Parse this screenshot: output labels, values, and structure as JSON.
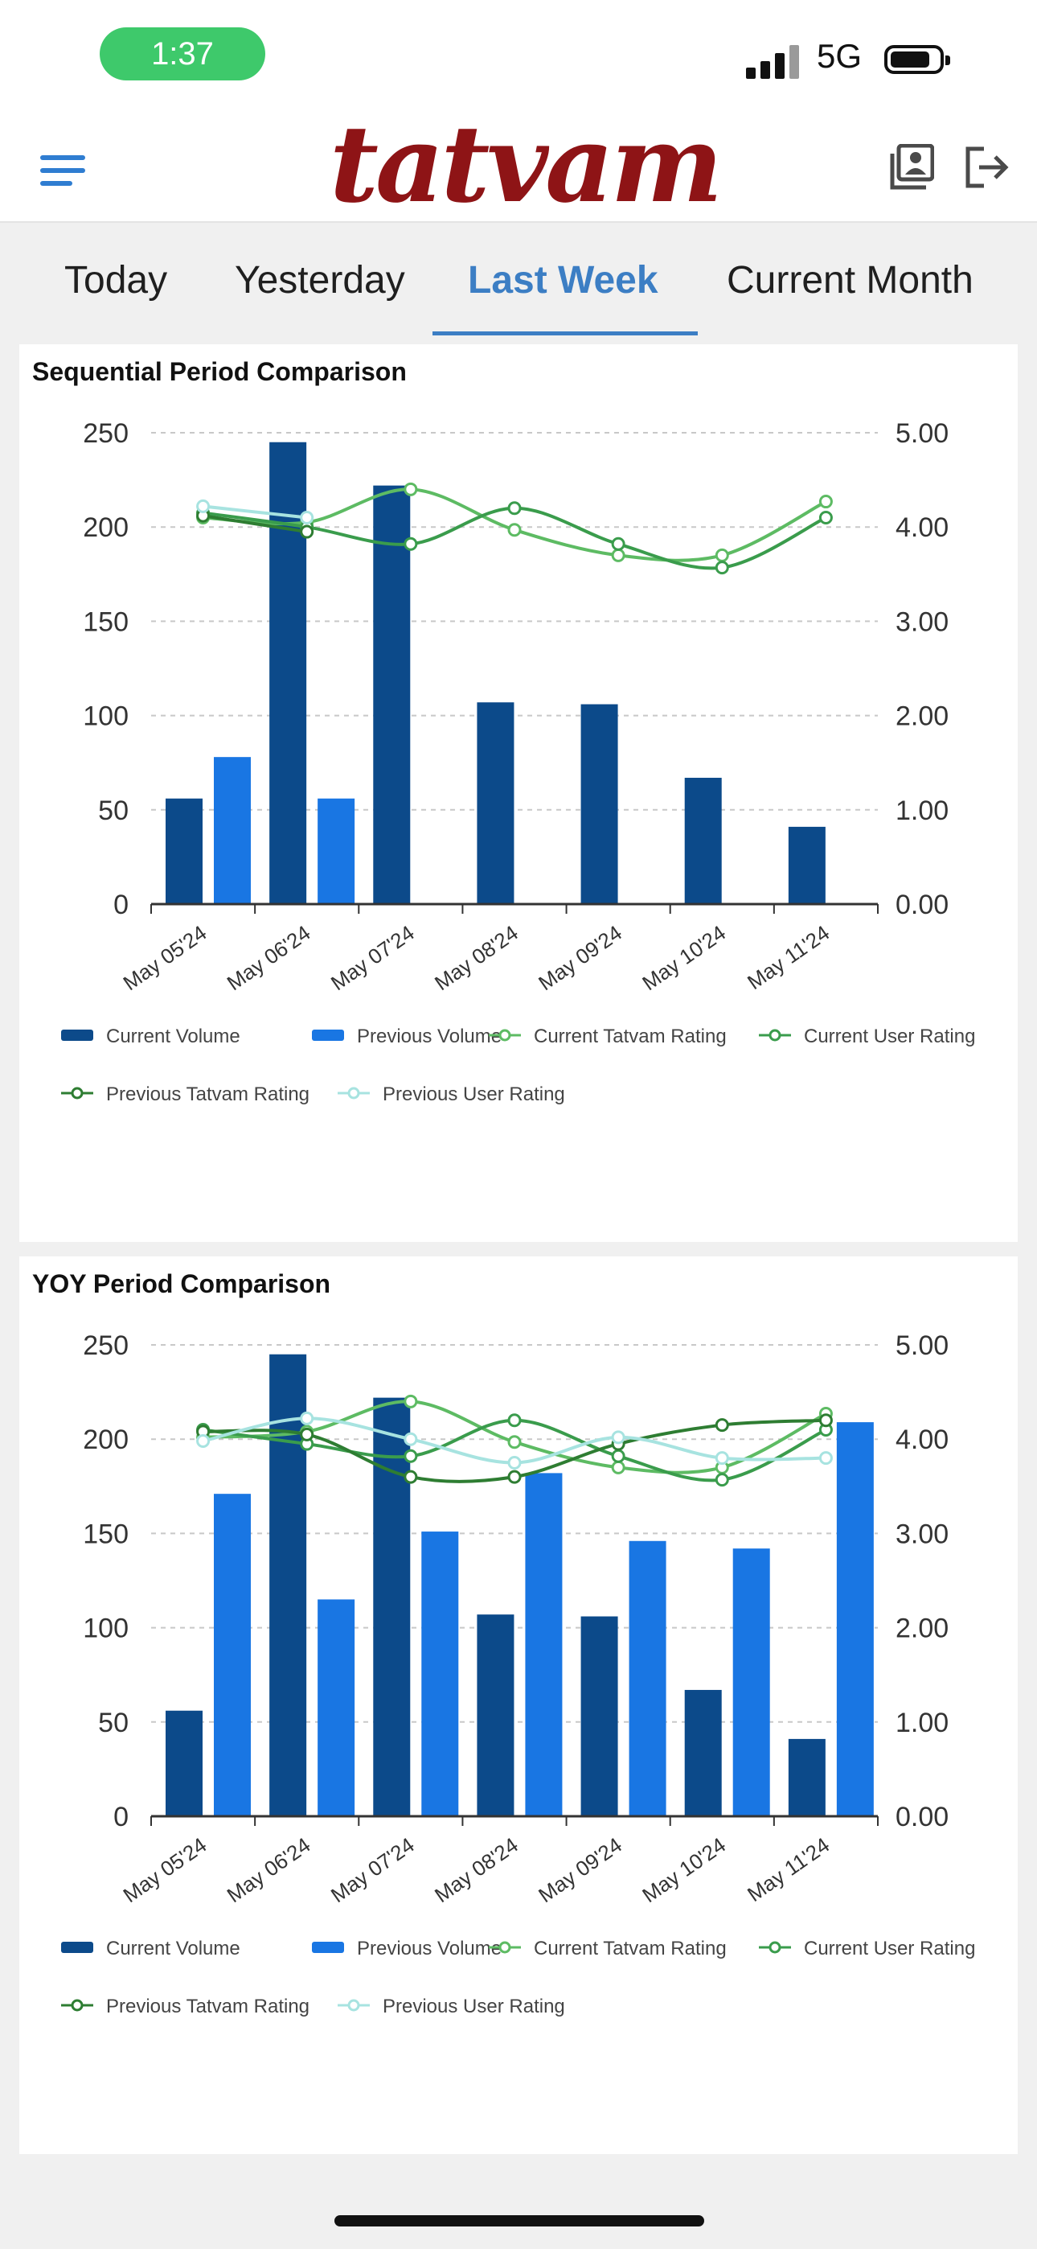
{
  "status_bar": {
    "time": "1:37",
    "network": "5G"
  },
  "header": {
    "logo_text": "tatvam"
  },
  "tabs": [
    {
      "label": "Today",
      "active": false
    },
    {
      "label": "Yesterday",
      "active": false
    },
    {
      "label": "Last Week",
      "active": true
    },
    {
      "label": "Current Month",
      "active": false
    }
  ],
  "colors": {
    "current_volume": "#0c4a8a",
    "previous_volume": "#1976e3",
    "current_tatvam_rating": "#5dbb63",
    "current_user_rating": "#3a9c4c",
    "previous_tatvam_rating": "#2e7d32",
    "previous_user_rating": "#a7e3e0",
    "accent": "#3c7ec4"
  },
  "chart_data": [
    {
      "type": "bar",
      "title": "Sequential Period Comparison",
      "categories": [
        "May 05'24",
        "May 06'24",
        "May 07'24",
        "May 08'24",
        "May 09'24",
        "May 10'24",
        "May 11'24"
      ],
      "y_left": {
        "range": [
          0,
          250
        ],
        "ticks": [
          "0",
          "50",
          "100",
          "150",
          "200",
          "250"
        ]
      },
      "y_right": {
        "range": [
          0,
          5
        ],
        "ticks": [
          "0.00",
          "1.00",
          "2.00",
          "3.00",
          "4.00",
          "5.00"
        ]
      },
      "grid": true,
      "legend_position": "bottom",
      "series": [
        {
          "name": "Current Volume",
          "kind": "bar",
          "axis": "left",
          "values": [
            56,
            245,
            222,
            107,
            106,
            67,
            41
          ]
        },
        {
          "name": "Previous Volume",
          "kind": "bar",
          "axis": "left",
          "values": [
            78,
            56,
            null,
            null,
            null,
            null,
            null
          ]
        },
        {
          "name": "Current Tatvam Rating",
          "kind": "line",
          "axis": "right",
          "values": [
            4.1,
            4.05,
            4.4,
            3.97,
            3.7,
            3.7,
            4.27
          ]
        },
        {
          "name": "Current User Rating",
          "kind": "line",
          "axis": "right",
          "values": [
            4.15,
            4.0,
            3.82,
            4.2,
            3.82,
            3.57,
            4.1
          ]
        },
        {
          "name": "Previous Tatvam Rating",
          "kind": "line",
          "axis": "right",
          "values": [
            4.12,
            3.95,
            null,
            null,
            null,
            null,
            null
          ]
        },
        {
          "name": "Previous User Rating",
          "kind": "line",
          "axis": "right",
          "values": [
            4.22,
            4.1,
            null,
            null,
            null,
            null,
            null
          ]
        }
      ]
    },
    {
      "type": "bar",
      "title": "YOY Period Comparison",
      "categories": [
        "May 05'24",
        "May 06'24",
        "May 07'24",
        "May 08'24",
        "May 09'24",
        "May 10'24",
        "May 11'24"
      ],
      "y_left": {
        "range": [
          0,
          250
        ],
        "ticks": [
          "0",
          "50",
          "100",
          "150",
          "200",
          "250"
        ]
      },
      "y_right": {
        "range": [
          0,
          5
        ],
        "ticks": [
          "0.00",
          "1.00",
          "2.00",
          "3.00",
          "4.00",
          "5.00"
        ]
      },
      "grid": true,
      "legend_position": "bottom",
      "series": [
        {
          "name": "Current Volume",
          "kind": "bar",
          "axis": "left",
          "values": [
            56,
            245,
            222,
            107,
            106,
            67,
            41
          ]
        },
        {
          "name": "Previous Volume",
          "kind": "bar",
          "axis": "left",
          "values": [
            171,
            115,
            151,
            182,
            146,
            142,
            209
          ]
        },
        {
          "name": "Current Tatvam Rating",
          "kind": "line",
          "axis": "right",
          "values": [
            4.02,
            4.08,
            4.4,
            3.97,
            3.7,
            3.7,
            4.27
          ]
        },
        {
          "name": "Current User Rating",
          "kind": "line",
          "axis": "right",
          "values": [
            4.1,
            3.95,
            3.82,
            4.2,
            3.82,
            3.57,
            4.1
          ]
        },
        {
          "name": "Previous Tatvam Rating",
          "kind": "line",
          "axis": "right",
          "values": [
            4.08,
            4.05,
            3.6,
            3.6,
            3.95,
            4.15,
            4.2
          ]
        },
        {
          "name": "Previous User Rating",
          "kind": "line",
          "axis": "right",
          "values": [
            3.98,
            4.22,
            4.0,
            3.75,
            4.02,
            3.8,
            3.8
          ]
        }
      ]
    }
  ]
}
